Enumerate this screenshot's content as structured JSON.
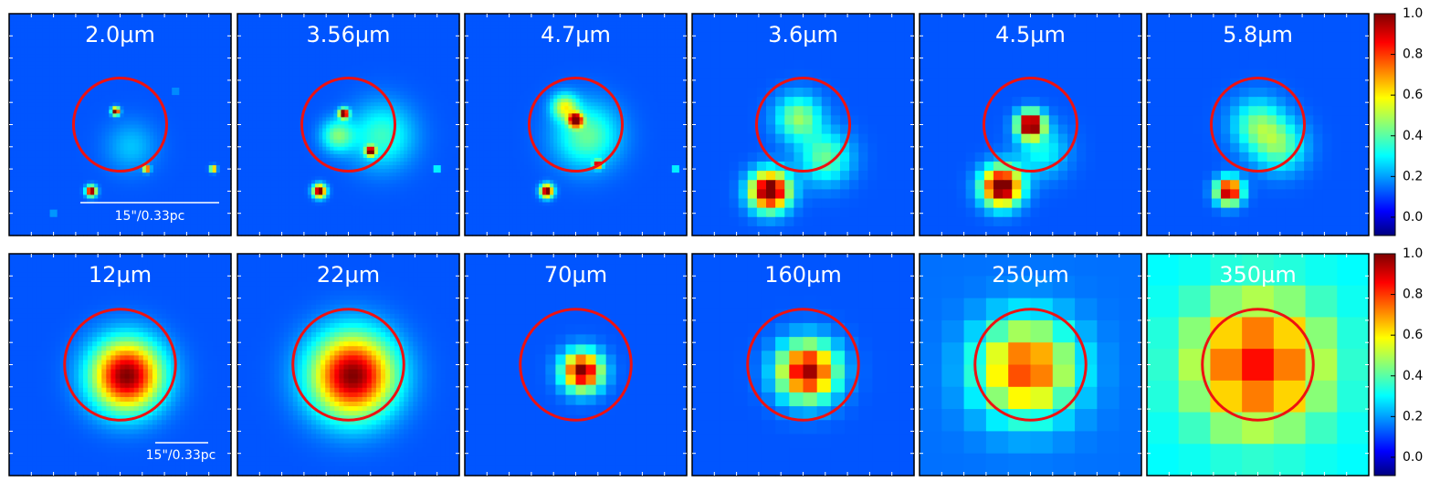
{
  "panels": [
    {
      "label": "2.0μm"
    },
    {
      "label": "3.56μm"
    },
    {
      "label": "4.7μm"
    },
    {
      "label": "3.6μm"
    },
    {
      "label": "4.5μm"
    },
    {
      "label": "5.8μm"
    },
    {
      "label": "12μm"
    },
    {
      "label": "22μm"
    },
    {
      "label": "70μm"
    },
    {
      "label": "160μm"
    },
    {
      "label": "250μm"
    },
    {
      "label": "350μm"
    }
  ],
  "scale_bars": [
    "15\"/0.33pc",
    "15\"/0.33pc"
  ],
  "colorbar": {
    "lim": [
      -0.09,
      1.0
    ],
    "ticks": [
      {
        "value": 0,
        "label": "0.0"
      },
      {
        "value": 0.2,
        "label": "0.2"
      },
      {
        "value": 0.4,
        "label": "0.4"
      },
      {
        "value": 0.6,
        "label": "0.6"
      },
      {
        "value": 0.8,
        "label": "0.8"
      },
      {
        "value": 1,
        "label": "1.0"
      }
    ]
  }
}
